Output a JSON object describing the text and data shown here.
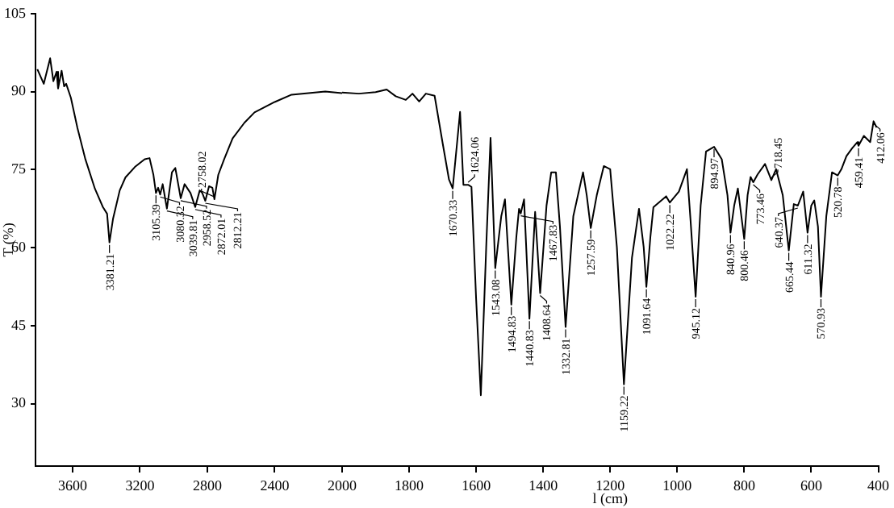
{
  "chart_data": [
    {
      "type": "line",
      "ylabel": "T (%)",
      "xlim": [
        3820,
        2000
      ],
      "xticks": [
        3600,
        3200,
        2800,
        2400,
        2000
      ],
      "ylim": [
        18,
        105
      ],
      "yticks": [
        30,
        45,
        60,
        75,
        90,
        105
      ],
      "series": [
        {
          "color": "#000000",
          "x": [
            3809,
            3771,
            3733,
            3714,
            3695,
            3686,
            3665,
            3650,
            3638,
            3610,
            3571,
            3524,
            3467,
            3420,
            3395,
            3381,
            3360,
            3320,
            3286,
            3230,
            3172,
            3143,
            3120,
            3105,
            3092,
            3080,
            3065,
            3040,
            3010,
            2990,
            2958,
            2935,
            2900,
            2872,
            2845,
            2830,
            2812,
            2790,
            2770,
            2758,
            2735,
            2700,
            2650,
            2580,
            2520,
            2460,
            2400,
            2300,
            2200,
            2100,
            2000
          ],
          "values": [
            94.3,
            91.5,
            96.4,
            92,
            93.8,
            90.6,
            94,
            91,
            91.5,
            88.8,
            83,
            77,
            71.3,
            67.8,
            66.5,
            61,
            65.5,
            71,
            73.5,
            75.5,
            77,
            77.2,
            74,
            70.5,
            71.5,
            70.2,
            72.2,
            67.5,
            74.5,
            75.3,
            69.5,
            72.2,
            70.5,
            67.8,
            71,
            70.5,
            69,
            71.8,
            71.5,
            69.3,
            74,
            77,
            81,
            84,
            86,
            87,
            88,
            89.4,
            89.7,
            90,
            89.7
          ]
        }
      ],
      "annotations": [
        {
          "text": "3381.21",
          "x": 3381,
          "y": 61
        },
        {
          "text": "3105.39",
          "x": 3105,
          "y": 70.5
        },
        {
          "text": "3080.32",
          "x": 3080,
          "y": 70.2
        },
        {
          "text": "3039.81",
          "x": 3040,
          "y": 67.5
        },
        {
          "text": "2958.52",
          "x": 2958,
          "y": 69.5
        },
        {
          "text": "2872.01",
          "x": 2872,
          "y": 67.8
        },
        {
          "text": "2812.21",
          "x": 2812,
          "y": 69
        },
        {
          "text": "2758.02",
          "x": 2758,
          "y": 69.3
        }
      ]
    },
    {
      "type": "line",
      "xlabel": "l (cm)",
      "xlim": [
        2000,
        400
      ],
      "xticks": [
        1800,
        1600,
        1400,
        1200,
        1000,
        800,
        600,
        400
      ],
      "ylim": [
        18,
        105
      ],
      "yticks": [
        30,
        45,
        60,
        75,
        90,
        105
      ],
      "tick_labels": "x",
      "series": [
        {
          "color": "#000000",
          "x": [
            2000,
            1950,
            1900,
            1867,
            1840,
            1810,
            1790,
            1770,
            1750,
            1724,
            1700,
            1681,
            1670,
            1648,
            1638,
            1624,
            1614,
            1600,
            1586,
            1570,
            1557,
            1543,
            1525,
            1514,
            1495,
            1480,
            1472,
            1467,
            1457,
            1441,
            1424,
            1409,
            1390,
            1376,
            1362,
            1350,
            1333,
            1310,
            1281,
            1270,
            1258,
            1240,
            1219,
            1200,
            1180,
            1159,
            1135,
            1114,
            1100,
            1092,
            1080,
            1071,
            1033,
            1022,
            995,
            971,
            960,
            945,
            930,
            914,
            890,
            867,
            850,
            841,
            830,
            819,
            800,
            790,
            781,
            773,
            760,
            738,
            719,
            705,
            685,
            667,
            652,
            640,
            624,
            611,
            600,
            591,
            580,
            571,
            555,
            538,
            521,
            510,
            495,
            478,
            462,
            459,
            443,
            424,
            414,
            405
          ],
          "values": [
            89.7,
            89.5,
            89.8,
            90.3,
            89,
            88.3,
            89.5,
            88,
            89.5,
            89.1,
            80,
            73,
            71.3,
            86,
            72,
            72,
            71.6,
            50,
            31.6,
            60,
            81,
            56,
            66,
            69.2,
            49,
            62,
            67.4,
            66.5,
            69.2,
            46.3,
            66.8,
            51.2,
            68,
            74.4,
            74.4,
            64,
            44.7,
            66,
            74.4,
            70,
            63.7,
            70,
            75.6,
            75,
            60,
            33.7,
            58,
            67.4,
            60,
            52.4,
            62,
            67.7,
            69.8,
            68.6,
            70.7,
            75,
            65,
            50.5,
            68,
            78.4,
            79.3,
            76.9,
            70,
            62.8,
            68,
            71.3,
            61.6,
            70,
            73.5,
            72.5,
            74,
            76,
            72.9,
            75,
            70,
            59.4,
            68.3,
            68,
            70.7,
            62.8,
            68,
            69,
            64,
            50.5,
            66,
            74.4,
            73.8,
            75,
            77.5,
            79,
            80.2,
            79.5,
            81.4,
            80.2,
            84.2,
            83
          ]
        }
      ],
      "annotations": [
        {
          "text": "1670.33",
          "x": 1670,
          "y": 71.3
        },
        {
          "text": "1624.06",
          "x": 1624,
          "y": 72
        },
        {
          "text": "1543.08",
          "x": 1543,
          "y": 56
        },
        {
          "text": "1494.83",
          "x": 1495,
          "y": 49
        },
        {
          "text": "1467.83",
          "x": 1467,
          "y": 66.5
        },
        {
          "text": "1440.83",
          "x": 1441,
          "y": 46.3
        },
        {
          "text": "1408.64",
          "x": 1409,
          "y": 51.2
        },
        {
          "text": "1332.81",
          "x": 1333,
          "y": 44.7
        },
        {
          "text": "1257.59",
          "x": 1258,
          "y": 63.7
        },
        {
          "text": "1159.22",
          "x": 1159,
          "y": 33.7
        },
        {
          "text": "1091.64",
          "x": 1092,
          "y": 52.4
        },
        {
          "text": "1022.22",
          "x": 1022,
          "y": 68.6
        },
        {
          "text": "945.12",
          "x": 945,
          "y": 50.5
        },
        {
          "text": "894.97",
          "x": 890,
          "y": 79.3
        },
        {
          "text": "840.96",
          "x": 841,
          "y": 62.8
        },
        {
          "text": "800.46",
          "x": 800,
          "y": 61.6
        },
        {
          "text": "773.46",
          "x": 773,
          "y": 72.5
        },
        {
          "text": "718.45",
          "x": 719,
          "y": 72.9
        },
        {
          "text": "665.44",
          "x": 667,
          "y": 59.4
        },
        {
          "text": "640.37",
          "x": 640,
          "y": 68
        },
        {
          "text": "611.32",
          "x": 611,
          "y": 62.8
        },
        {
          "text": "570.93",
          "x": 571,
          "y": 50.5
        },
        {
          "text": "520.78",
          "x": 521,
          "y": 73.8
        },
        {
          "text": "459.41",
          "x": 459,
          "y": 79.5
        },
        {
          "text": "412.06",
          "x": 414,
          "y": 84.2
        }
      ]
    }
  ]
}
